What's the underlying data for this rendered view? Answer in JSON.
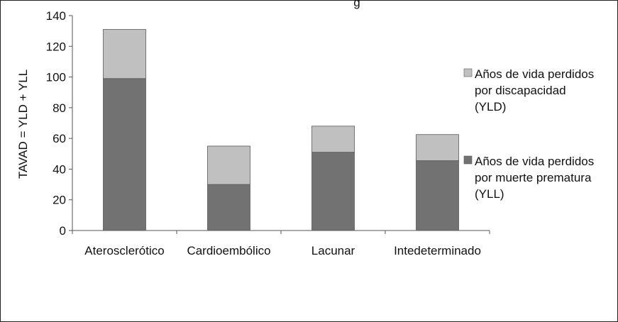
{
  "chart_data": {
    "type": "bar",
    "stacked": true,
    "title_fragment": "g",
    "ylabel": "TAVAD = YLD + YLL",
    "xlabel": "",
    "ylim": [
      0,
      140
    ],
    "yticks": [
      0,
      20,
      40,
      60,
      80,
      100,
      120,
      140
    ],
    "categories": [
      "Aterosclerótico",
      "Cardioembólico",
      "Lacunar",
      "Intedeterminado"
    ],
    "series": [
      {
        "name": "Años de vida perdidos por muerte prematura (YLL)",
        "legend_lines": [
          "Años de vida perdidos",
          "por muerte prematura",
          "(YLL)"
        ],
        "color": "#727272",
        "values": [
          99,
          30,
          51,
          45.5
        ]
      },
      {
        "name": "Años de vida perdidos por discapacidad (YLD)",
        "legend_lines": [
          "Años de vida perdidos",
          "por discapacidad",
          "(YLD)"
        ],
        "color": "#c0c0c0",
        "values": [
          32,
          25,
          17,
          17
        ]
      }
    ],
    "legend_position": "right",
    "grid": false
  }
}
